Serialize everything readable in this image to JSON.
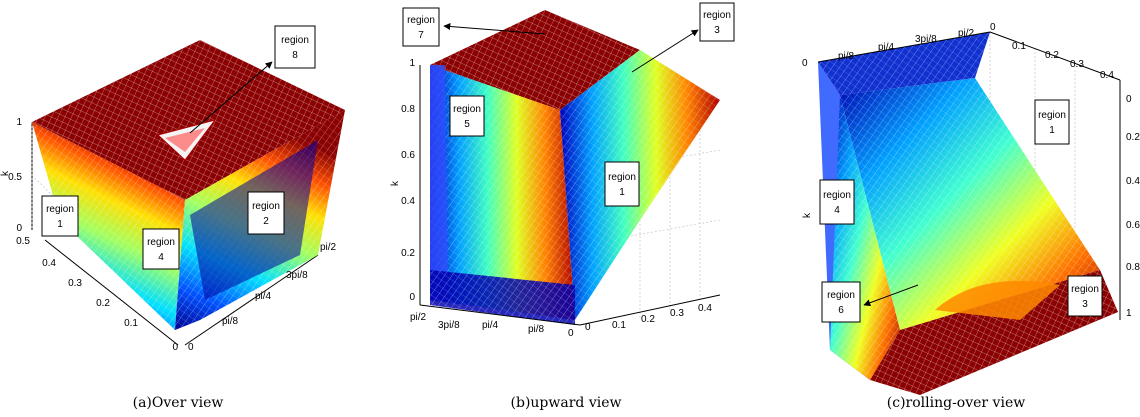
{
  "chart_data": [
    {
      "type": "surface3d",
      "caption": "(a)Over view",
      "zlabel": "k",
      "x_ticks": [
        "0",
        "0.1",
        "0.2",
        "0.3",
        "0.4",
        "0.5"
      ],
      "y_ticks": [
        "0",
        "pi/8",
        "pi/4",
        "3pi/8",
        "pi/2"
      ],
      "z_ticks": [
        "0",
        "0.5",
        "1"
      ],
      "annotations": [
        {
          "name": "region 1",
          "lines": [
            "region",
            "1"
          ]
        },
        {
          "name": "region 2",
          "lines": [
            "region",
            "2"
          ]
        },
        {
          "name": "region 4",
          "lines": [
            "region",
            "4"
          ]
        },
        {
          "name": "region 8",
          "lines": [
            "region",
            "8"
          ]
        }
      ],
      "colormap": "jet",
      "plateau_color": "#8b0000"
    },
    {
      "type": "surface3d",
      "caption": "(b)upward view",
      "zlabel": "k",
      "x_ticks": [
        "0",
        "0.1",
        "0.2",
        "0.3",
        "0.4"
      ],
      "y_ticks": [
        "pi/2",
        "3pi/8",
        "pi/4",
        "pi/8",
        "0"
      ],
      "z_ticks": [
        "0",
        "0.2",
        "0.4",
        "0.6",
        "0.8",
        "1"
      ],
      "annotations": [
        {
          "name": "region 7",
          "lines": [
            "region",
            "7"
          ]
        },
        {
          "name": "region 3",
          "lines": [
            "region",
            "3"
          ]
        },
        {
          "name": "region 5",
          "lines": [
            "region",
            "5"
          ]
        },
        {
          "name": "region 1",
          "lines": [
            "region",
            "1"
          ]
        }
      ],
      "colormap": "jet"
    },
    {
      "type": "surface3d",
      "caption": "(c)rolling-over view",
      "zlabel": "k",
      "x_ticks": [
        "0",
        "0.1",
        "0.2",
        "0.3",
        "0.4"
      ],
      "y_ticks": [
        "pi/8",
        "pi/4",
        "3pi/8",
        "pi/2"
      ],
      "z_ticks": [
        "0",
        "0.2",
        "0.4",
        "0.6",
        "0.8",
        "1"
      ],
      "annotations": [
        {
          "name": "region 1",
          "lines": [
            "region",
            "1"
          ]
        },
        {
          "name": "region 4",
          "lines": [
            "region",
            "4"
          ]
        },
        {
          "name": "region 6",
          "lines": [
            "region",
            "6"
          ]
        },
        {
          "name": "region 3",
          "lines": [
            "region",
            "3"
          ]
        }
      ],
      "colormap": "jet"
    }
  ]
}
